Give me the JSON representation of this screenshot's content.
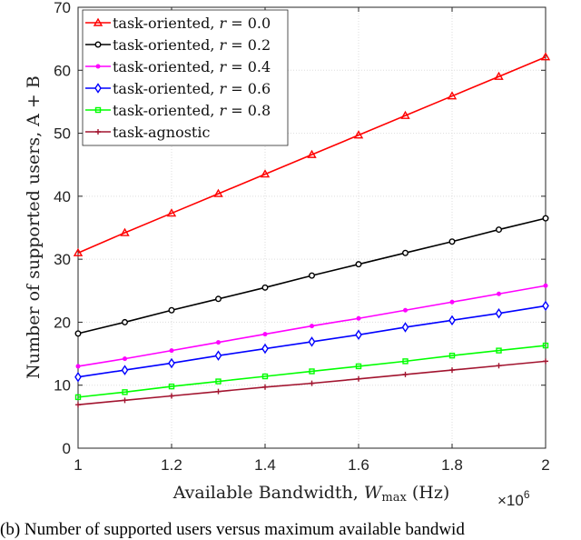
{
  "chart_data": {
    "type": "line",
    "title": "",
    "xlabel": "Available Bandwidth, W_max (Hz)",
    "xlabel_parts": {
      "main": "Available Bandwidth, ",
      "var": "W",
      "sub": "max",
      "unit": " (Hz)"
    },
    "x_multiplier": "×10",
    "x_multiplier_exp": "6",
    "ylabel": "Number of supported users, A + B",
    "xlim": [
      1,
      2
    ],
    "ylim": [
      0,
      70
    ],
    "xticks": [
      "1",
      "1.2",
      "1.4",
      "1.6",
      "1.8",
      "2"
    ],
    "xtick_values": [
      1,
      1.2,
      1.4,
      1.6,
      1.8,
      2
    ],
    "yticks": [
      "0",
      "10",
      "20",
      "30",
      "40",
      "50",
      "60",
      "70"
    ],
    "ytick_values": [
      0,
      10,
      20,
      30,
      40,
      50,
      60,
      70
    ],
    "grid": true,
    "legend_position": "top-left",
    "x": [
      1,
      1.1,
      1.2,
      1.3,
      1.4,
      1.5,
      1.6,
      1.7,
      1.8,
      1.9,
      2
    ],
    "series": [
      {
        "name": "task-oriented, r = 0.0",
        "color": "#ff0000",
        "marker": "triangle",
        "values": [
          31.0,
          34.2,
          37.3,
          40.4,
          43.5,
          46.6,
          49.7,
          52.8,
          55.9,
          59.0,
          62.1
        ]
      },
      {
        "name": "task-oriented, r = 0.2",
        "color": "#000000",
        "marker": "circle",
        "values": [
          18.2,
          20.0,
          21.9,
          23.7,
          25.5,
          27.4,
          29.2,
          31.0,
          32.8,
          34.7,
          36.5
        ]
      },
      {
        "name": "task-oriented, r = 0.4",
        "color": "#ff00ff",
        "marker": "dot",
        "values": [
          13.0,
          14.2,
          15.5,
          16.8,
          18.1,
          19.4,
          20.6,
          21.9,
          23.2,
          24.5,
          25.8
        ]
      },
      {
        "name": "task-oriented, r = 0.6",
        "color": "#0000ff",
        "marker": "diamond",
        "values": [
          11.3,
          12.4,
          13.5,
          14.7,
          15.8,
          16.9,
          18.0,
          19.2,
          20.3,
          21.4,
          22.6
        ]
      },
      {
        "name": "task-oriented, r = 0.8",
        "color": "#00ff00",
        "marker": "square",
        "values": [
          8.1,
          8.9,
          9.8,
          10.6,
          11.4,
          12.2,
          13.0,
          13.8,
          14.7,
          15.5,
          16.3
        ]
      },
      {
        "name": "task-agnostic",
        "color": "#a2142f",
        "marker": "plus",
        "values": [
          6.9,
          7.6,
          8.3,
          9.0,
          9.7,
          10.3,
          11.0,
          11.7,
          12.4,
          13.1,
          13.8
        ]
      }
    ]
  },
  "caption": "(b) Number of supported users versus maximum available bandwid"
}
